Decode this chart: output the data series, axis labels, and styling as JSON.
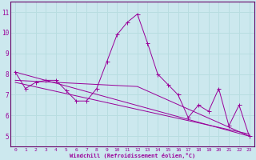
{
  "xlabel": "Windchill (Refroidissement éolien,°C)",
  "background_color": "#cce8ee",
  "grid_color": "#aacccc",
  "line_color": "#990099",
  "spine_color": "#660066",
  "xlim": [
    -0.5,
    23.5
  ],
  "ylim": [
    4.5,
    11.5
  ],
  "yticks": [
    5,
    6,
    7,
    8,
    9,
    10,
    11
  ],
  "xticks": [
    0,
    1,
    2,
    3,
    4,
    5,
    6,
    7,
    8,
    9,
    10,
    11,
    12,
    13,
    14,
    15,
    16,
    17,
    18,
    19,
    20,
    21,
    22,
    23
  ],
  "series1": {
    "x": [
      0,
      1,
      2,
      3,
      4,
      5,
      6,
      7,
      8,
      9,
      10,
      11,
      12,
      13,
      14,
      15,
      16,
      17,
      18,
      19,
      20,
      21,
      22,
      23
    ],
    "y": [
      8.1,
      7.3,
      7.6,
      7.7,
      7.7,
      7.2,
      6.7,
      6.7,
      7.3,
      8.6,
      9.9,
      10.5,
      10.9,
      9.5,
      8.0,
      7.5,
      7.0,
      5.9,
      6.5,
      6.2,
      7.3,
      5.5,
      6.5,
      5.0
    ]
  },
  "series2": {
    "x": [
      0,
      23
    ],
    "y": [
      8.1,
      5.0
    ]
  },
  "series3": {
    "x": [
      0,
      12,
      23
    ],
    "y": [
      7.7,
      7.4,
      5.0
    ]
  },
  "series4": {
    "x": [
      0,
      23
    ],
    "y": [
      7.6,
      5.1
    ]
  }
}
